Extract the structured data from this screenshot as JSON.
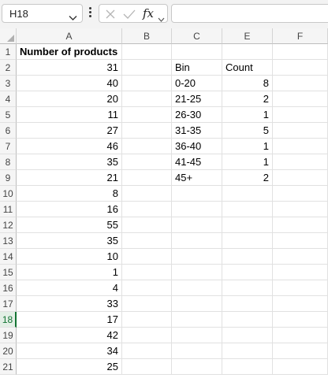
{
  "formula_bar": {
    "name_box": "H18",
    "fx_label": "fx",
    "formula": ""
  },
  "columns": [
    "A",
    "B",
    "C",
    "E",
    "F"
  ],
  "rows": [
    {
      "num": "1",
      "A": "Number of products",
      "B": "",
      "C": "",
      "E": "",
      "F": ""
    },
    {
      "num": "2",
      "A": "31",
      "B": "",
      "C": "Bin",
      "E": "Count",
      "F": ""
    },
    {
      "num": "3",
      "A": "40",
      "B": "",
      "C": "0-20",
      "E": "8",
      "F": ""
    },
    {
      "num": "4",
      "A": "20",
      "B": "",
      "C": "21-25",
      "E": "2",
      "F": ""
    },
    {
      "num": "5",
      "A": "11",
      "B": "",
      "C": "26-30",
      "E": "1",
      "F": ""
    },
    {
      "num": "6",
      "A": "27",
      "B": "",
      "C": "31-35",
      "E": "5",
      "F": ""
    },
    {
      "num": "7",
      "A": "46",
      "B": "",
      "C": "36-40",
      "E": "1",
      "F": ""
    },
    {
      "num": "8",
      "A": "35",
      "B": "",
      "C": "41-45",
      "E": "1",
      "F": ""
    },
    {
      "num": "9",
      "A": "21",
      "B": "",
      "C": "45+",
      "E": "2",
      "F": ""
    },
    {
      "num": "10",
      "A": "8",
      "B": "",
      "C": "",
      "E": "",
      "F": ""
    },
    {
      "num": "11",
      "A": "16",
      "B": "",
      "C": "",
      "E": "",
      "F": ""
    },
    {
      "num": "12",
      "A": "55",
      "B": "",
      "C": "",
      "E": "",
      "F": ""
    },
    {
      "num": "13",
      "A": "35",
      "B": "",
      "C": "",
      "E": "",
      "F": ""
    },
    {
      "num": "14",
      "A": "10",
      "B": "",
      "C": "",
      "E": "",
      "F": ""
    },
    {
      "num": "15",
      "A": "1",
      "B": "",
      "C": "",
      "E": "",
      "F": ""
    },
    {
      "num": "16",
      "A": "4",
      "B": "",
      "C": "",
      "E": "",
      "F": ""
    },
    {
      "num": "17",
      "A": "33",
      "B": "",
      "C": "",
      "E": "",
      "F": ""
    },
    {
      "num": "18",
      "A": "17",
      "B": "",
      "C": "",
      "E": "",
      "F": ""
    },
    {
      "num": "19",
      "A": "42",
      "B": "",
      "C": "",
      "E": "",
      "F": ""
    },
    {
      "num": "20",
      "A": "34",
      "B": "",
      "C": "",
      "E": "",
      "F": ""
    },
    {
      "num": "21",
      "A": "25",
      "B": "",
      "C": "",
      "E": "",
      "F": ""
    }
  ],
  "active_row": "18",
  "theme": {
    "accent": "#137333"
  }
}
